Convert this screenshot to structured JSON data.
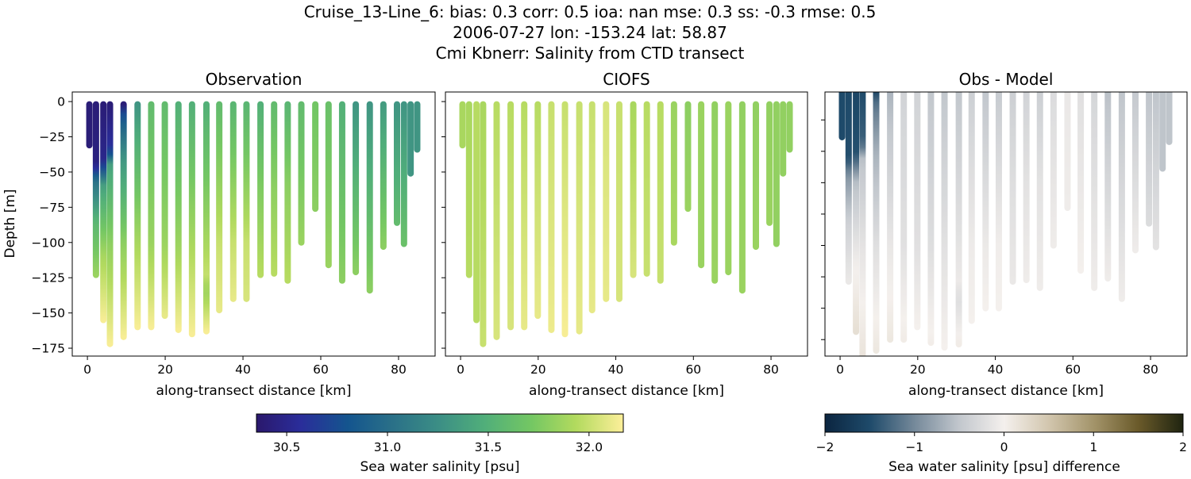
{
  "title_lines": [
    "Cruise_13-Line_6: bias: 0.3  corr: 0.5  ioa: nan  mse: 0.3  ss: -0.3  rmse: 0.5",
    "2006-07-27 lon: -153.24 lat: 58.87",
    "Cmi Kbnerr: Salinity from CTD transect"
  ],
  "chart_data": {
    "type": "scatter",
    "panels": [
      {
        "title": "Observation",
        "field": "obs",
        "xlabel": "along-transect distance [km]",
        "ylabel": "Depth [m]",
        "xlim": [
          -3.9,
          89.4
        ],
        "ylim": [
          -180.6,
          6.8
        ],
        "xticks": [
          0,
          20,
          40,
          60,
          80
        ],
        "yticks": [
          0,
          -25,
          -50,
          -75,
          -100,
          -125,
          -150,
          -175
        ],
        "ytick_labels_shown": true,
        "colormap": "haline"
      },
      {
        "title": "CIOFS",
        "field": "model",
        "xlabel": "along-transect distance [km]",
        "ylabel": "",
        "xlim": [
          -3.9,
          89.4
        ],
        "ylim": [
          -180.6,
          6.8
        ],
        "xticks": [
          0,
          20,
          40,
          60,
          80
        ],
        "yticks": [
          0,
          -25,
          -50,
          -75,
          -100,
          -125,
          -150,
          -175
        ],
        "ytick_labels_shown": false,
        "colormap": "haline"
      },
      {
        "title": "Obs - Model",
        "field": "diff",
        "xlabel": "along-transect distance [km]",
        "ylabel": "",
        "xlim": [
          -3.9,
          89.4
        ],
        "ylim": [
          -170.5,
          -2.2
        ],
        "xticks": [
          0,
          20,
          40,
          60,
          80
        ],
        "yticks": [
          -20,
          -40,
          -60,
          -80,
          -100,
          -120,
          -140,
          -160
        ],
        "ytick_labels_shown": false,
        "colormap": "diff"
      }
    ],
    "colorbars": [
      {
        "label": "Sea water salinity [psu]",
        "range": [
          30.35,
          32.17
        ],
        "ticks": [
          30.5,
          31.0,
          31.5,
          32.0
        ],
        "tick_labels": [
          "30.5",
          "31.0",
          "31.5",
          "32.0"
        ],
        "colormap": "haline"
      },
      {
        "label": "Sea water salinity [psu] difference",
        "range": [
          -2,
          2
        ],
        "ticks": [
          -2,
          -1,
          0,
          1,
          2
        ],
        "tick_labels": [
          "−2",
          "−1",
          "0",
          "1",
          "2"
        ],
        "colormap": "diff"
      }
    ],
    "casts": [
      {
        "x": 0.5,
        "top": -2,
        "bottom": -31,
        "obs": [
          [
            2,
            30.4
          ],
          [
            31,
            30.4
          ]
        ],
        "model": [
          [
            2,
            31.9
          ],
          [
            31,
            31.9
          ]
        ]
      },
      {
        "x": 2.2,
        "top": -2,
        "bottom": -123,
        "obs": [
          [
            2,
            30.4
          ],
          [
            45,
            30.45
          ],
          [
            55,
            31.0
          ],
          [
            85,
            31.55
          ],
          [
            123,
            31.85
          ]
        ],
        "model": [
          [
            2,
            31.9
          ],
          [
            123,
            31.95
          ]
        ]
      },
      {
        "x": 4.1,
        "top": -2,
        "bottom": -155,
        "obs": [
          [
            2,
            30.4
          ],
          [
            42,
            30.5
          ],
          [
            60,
            31.4
          ],
          [
            110,
            31.9
          ],
          [
            155,
            32.15
          ]
        ],
        "model": [
          [
            2,
            31.95
          ],
          [
            155,
            31.95
          ]
        ]
      },
      {
        "x": 5.8,
        "top": -2,
        "bottom": -172,
        "obs": [
          [
            2,
            30.4
          ],
          [
            35,
            30.6
          ],
          [
            45,
            31.4
          ],
          [
            100,
            31.8
          ],
          [
            172,
            32.15
          ]
        ],
        "model": [
          [
            2,
            31.9
          ],
          [
            172,
            32.0
          ]
        ]
      },
      {
        "x": 9.3,
        "top": -2,
        "bottom": -167,
        "obs": [
          [
            2,
            30.4
          ],
          [
            10,
            30.8
          ],
          [
            40,
            31.3
          ],
          [
            100,
            31.8
          ],
          [
            167,
            32.15
          ]
        ],
        "model": [
          [
            2,
            31.95
          ],
          [
            167,
            32.05
          ]
        ]
      },
      {
        "x": 12.9,
        "top": -2,
        "bottom": -160,
        "obs": [
          [
            2,
            31.3
          ],
          [
            30,
            31.5
          ],
          [
            100,
            31.9
          ],
          [
            160,
            32.15
          ]
        ],
        "model": [
          [
            2,
            31.95
          ],
          [
            160,
            32.05
          ]
        ]
      },
      {
        "x": 16.4,
        "top": -2,
        "bottom": -160,
        "obs": [
          [
            2,
            31.6
          ],
          [
            100,
            31.85
          ],
          [
            160,
            32.15
          ]
        ],
        "model": [
          [
            2,
            31.95
          ],
          [
            160,
            32.1
          ]
        ]
      },
      {
        "x": 19.9,
        "top": -2,
        "bottom": -152,
        "obs": [
          [
            2,
            31.6
          ],
          [
            100,
            31.85
          ],
          [
            152,
            32.1
          ]
        ],
        "model": [
          [
            2,
            31.95
          ],
          [
            152,
            32.1
          ]
        ]
      },
      {
        "x": 23.4,
        "top": -2,
        "bottom": -162,
        "obs": [
          [
            2,
            31.5
          ],
          [
            100,
            31.85
          ],
          [
            162,
            32.15
          ]
        ],
        "model": [
          [
            2,
            32.0
          ],
          [
            162,
            32.12
          ]
        ]
      },
      {
        "x": 26.9,
        "top": -2,
        "bottom": -165,
        "obs": [
          [
            2,
            31.5
          ],
          [
            100,
            31.9
          ],
          [
            165,
            32.15
          ]
        ],
        "model": [
          [
            2,
            32.0
          ],
          [
            165,
            32.15
          ]
        ]
      },
      {
        "x": 30.6,
        "top": -2,
        "bottom": -163,
        "obs": [
          [
            2,
            31.5
          ],
          [
            100,
            31.9
          ],
          [
            125,
            32.0
          ],
          [
            132,
            31.85
          ],
          [
            140,
            31.9
          ],
          [
            163,
            32.15
          ]
        ],
        "model": [
          [
            2,
            32.0
          ],
          [
            163,
            32.1
          ]
        ]
      },
      {
        "x": 33.9,
        "top": -2,
        "bottom": -148,
        "obs": [
          [
            2,
            31.6
          ],
          [
            100,
            32.0
          ],
          [
            148,
            32.1
          ]
        ],
        "model": [
          [
            2,
            32.0
          ],
          [
            148,
            32.1
          ]
        ]
      },
      {
        "x": 37.5,
        "top": -2,
        "bottom": -140,
        "obs": [
          [
            2,
            31.55
          ],
          [
            100,
            32.0
          ],
          [
            140,
            32.1
          ]
        ],
        "model": [
          [
            2,
            32.05
          ],
          [
            140,
            32.1
          ]
        ]
      },
      {
        "x": 40.9,
        "top": -2,
        "bottom": -140,
        "obs": [
          [
            2,
            31.55
          ],
          [
            100,
            32.0
          ],
          [
            140,
            32.05
          ]
        ],
        "model": [
          [
            2,
            32.0
          ],
          [
            140,
            32.05
          ]
        ]
      },
      {
        "x": 44.5,
        "top": -2,
        "bottom": -123,
        "obs": [
          [
            2,
            31.5
          ],
          [
            60,
            31.75
          ],
          [
            123,
            31.95
          ]
        ],
        "model": [
          [
            2,
            31.9
          ],
          [
            123,
            32.05
          ]
        ]
      },
      {
        "x": 48.0,
        "top": -2,
        "bottom": -122,
        "obs": [
          [
            2,
            31.6
          ],
          [
            60,
            31.8
          ],
          [
            122,
            31.95
          ]
        ],
        "model": [
          [
            2,
            31.95
          ],
          [
            122,
            32.0
          ]
        ]
      },
      {
        "x": 51.5,
        "top": -2,
        "bottom": -127,
        "obs": [
          [
            2,
            31.55
          ],
          [
            60,
            31.8
          ],
          [
            127,
            31.95
          ]
        ],
        "model": [
          [
            2,
            31.95
          ],
          [
            127,
            32.0
          ]
        ]
      },
      {
        "x": 55.0,
        "top": -2,
        "bottom": -100,
        "obs": [
          [
            2,
            31.6
          ],
          [
            100,
            31.85
          ]
        ],
        "model": [
          [
            2,
            31.85
          ],
          [
            100,
            31.9
          ]
        ]
      },
      {
        "x": 58.6,
        "top": -2,
        "bottom": -76,
        "obs": [
          [
            2,
            31.7
          ],
          [
            76,
            31.8
          ]
        ],
        "model": [
          [
            2,
            31.8
          ],
          [
            76,
            31.85
          ]
        ]
      },
      {
        "x": 62.0,
        "top": -2,
        "bottom": -116,
        "obs": [
          [
            2,
            31.65
          ],
          [
            116,
            31.85
          ]
        ],
        "model": [
          [
            2,
            31.85
          ],
          [
            116,
            31.85
          ]
        ]
      },
      {
        "x": 65.5,
        "top": -2,
        "bottom": -127,
        "obs": [
          [
            2,
            31.5
          ],
          [
            127,
            31.8
          ]
        ],
        "model": [
          [
            2,
            31.82
          ],
          [
            127,
            31.85
          ]
        ]
      },
      {
        "x": 69.0,
        "top": -2,
        "bottom": -121,
        "obs": [
          [
            2,
            31.3
          ],
          [
            121,
            31.8
          ]
        ],
        "model": [
          [
            2,
            31.85
          ],
          [
            121,
            31.85
          ]
        ]
      },
      {
        "x": 72.6,
        "top": -2,
        "bottom": -134,
        "obs": [
          [
            2,
            31.3
          ],
          [
            134,
            31.8
          ]
        ],
        "model": [
          [
            2,
            31.82
          ],
          [
            134,
            31.85
          ]
        ]
      },
      {
        "x": 76.1,
        "top": -2,
        "bottom": -103,
        "obs": [
          [
            2,
            31.35
          ],
          [
            103,
            31.8
          ]
        ],
        "model": [
          [
            2,
            31.82
          ],
          [
            103,
            31.85
          ]
        ]
      },
      {
        "x": 79.6,
        "top": -2,
        "bottom": -86,
        "obs": [
          [
            2,
            31.3
          ],
          [
            86,
            31.6
          ]
        ],
        "model": [
          [
            2,
            31.82
          ],
          [
            86,
            31.85
          ]
        ]
      },
      {
        "x": 81.4,
        "top": -2,
        "bottom": -101,
        "obs": [
          [
            2,
            31.3
          ],
          [
            101,
            31.65
          ]
        ],
        "model": [
          [
            2,
            31.82
          ],
          [
            101,
            31.82
          ]
        ]
      },
      {
        "x": 83.1,
        "top": -2,
        "bottom": -51,
        "obs": [
          [
            2,
            31.3
          ],
          [
            51,
            31.3
          ]
        ],
        "model": [
          [
            2,
            31.82
          ],
          [
            51,
            31.82
          ]
        ]
      },
      {
        "x": 84.8,
        "top": -2,
        "bottom": -34,
        "obs": [
          [
            2,
            31.3
          ],
          [
            34,
            31.3
          ]
        ],
        "model": [
          [
            2,
            31.82
          ],
          [
            34,
            31.82
          ]
        ]
      }
    ]
  }
}
